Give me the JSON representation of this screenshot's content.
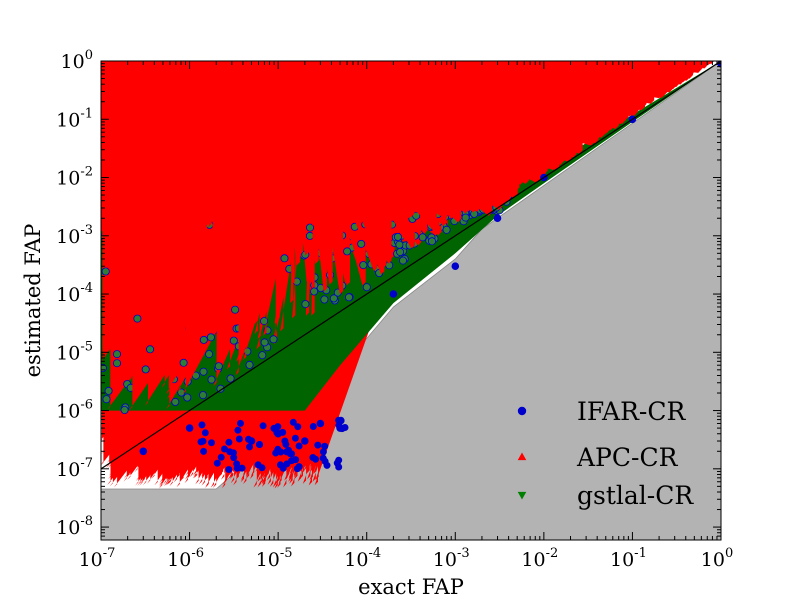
{
  "chart_data": {
    "type": "scatter",
    "title": "",
    "xlabel": "exact FAP",
    "ylabel": "estimated FAP",
    "xscale": "log",
    "yscale": "log",
    "xlim": [
      1e-07,
      1
    ],
    "ylim": [
      6e-09,
      1
    ],
    "x_ticks": [
      {
        "base": "10",
        "exp": "-7"
      },
      {
        "base": "10",
        "exp": "-6"
      },
      {
        "base": "10",
        "exp": "-5"
      },
      {
        "base": "10",
        "exp": "-4"
      },
      {
        "base": "10",
        "exp": "-3"
      },
      {
        "base": "10",
        "exp": "-2"
      },
      {
        "base": "10",
        "exp": "-1"
      },
      {
        "base": "10",
        "exp": "0"
      }
    ],
    "y_ticks": [
      {
        "base": "10",
        "exp": "-8"
      },
      {
        "base": "10",
        "exp": "-7"
      },
      {
        "base": "10",
        "exp": "-6"
      },
      {
        "base": "10",
        "exp": "-5"
      },
      {
        "base": "10",
        "exp": "-4"
      },
      {
        "base": "10",
        "exp": "-3"
      },
      {
        "base": "10",
        "exp": "-2"
      },
      {
        "base": "10",
        "exp": "-1"
      },
      {
        "base": "10",
        "exp": "0"
      }
    ],
    "legend_position": "lower-right",
    "diagonal_reference": {
      "x": [
        1e-07,
        1
      ],
      "y": [
        1e-07,
        1
      ],
      "color": "#000000"
    },
    "gray_region": {
      "color": "#b3b3b3",
      "boundary": [
        [
          1e-07,
          4.5e-08
        ],
        [
          2e-06,
          4.5e-08
        ],
        [
          2.1e-05,
          1.05e-06
        ],
        [
          5e-05,
          5e-06
        ],
        [
          0.0002,
          6e-05
        ],
        [
          0.001,
          0.0004
        ],
        [
          0.002,
          0.0013
        ],
        [
          1,
          1
        ]
      ]
    },
    "series": [
      {
        "name": "IFAR-CR",
        "marker": "circle",
        "color": "#0000cc",
        "x": [
          3e-07,
          1e-06,
          5e-06,
          1e-05,
          2e-05,
          3e-05,
          5e-05,
          0.0002,
          0.001,
          0.003,
          0.01,
          0.1,
          1
        ],
        "y": [
          2e-07,
          5e-07,
          3e-07,
          4e-07,
          3e-07,
          6e-07,
          5e-07,
          0.0001,
          0.0003,
          0.002,
          0.01,
          0.1,
          0.9
        ]
      },
      {
        "name": "APC-CR",
        "marker": "triangle-up",
        "color": "#ff0000",
        "x": [
          1e-07,
          1e-06,
          1e-05,
          0.0001,
          0.0005,
          0.001,
          0.003,
          0.01,
          0.1,
          1
        ],
        "y": [
          0.0018,
          0.0025,
          0.0025,
          0.003,
          0.004,
          0.005,
          0.008,
          0.02,
          0.15,
          1
        ]
      },
      {
        "name": "gstlal-CR",
        "marker": "triangle-down",
        "color": "#008000",
        "x": [
          1e-07,
          1e-06,
          1e-05,
          0.0001,
          0.001,
          0.01,
          0.1,
          1
        ],
        "y": [
          0.0012,
          0.0014,
          0.0018,
          0.0022,
          0.003,
          0.013,
          0.12,
          1
        ]
      }
    ]
  }
}
